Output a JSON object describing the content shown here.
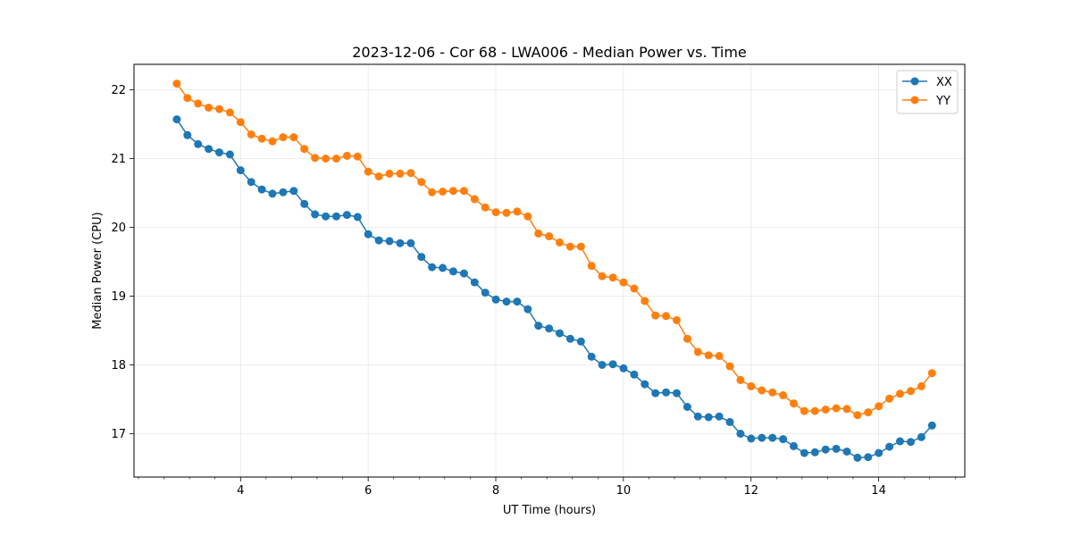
{
  "chart_data": {
    "type": "line",
    "title": "2023-12-06 - Cor 68 - LWA006 - Median Power vs. Time",
    "xlabel": "UT Time (hours)",
    "ylabel": "Median Power (CPU)",
    "xlim": [
      2.33,
      15.35
    ],
    "ylim": [
      16.37,
      22.37
    ],
    "xticks": [
      4,
      6,
      8,
      10,
      12,
      14
    ],
    "xtick_labels": [
      "4",
      "6",
      "8",
      "10",
      "12",
      "14"
    ],
    "x_minor_step": 0.4,
    "yticks": [
      17,
      18,
      19,
      20,
      21,
      22
    ],
    "ytick_labels": [
      "17",
      "18",
      "19",
      "20",
      "21",
      "22"
    ],
    "grid": true,
    "legend_position": "top-right",
    "series_colors": [
      "#1f77b4",
      "#ff7f0e"
    ],
    "x_start": 3.0,
    "x_step": 0.1667,
    "series": [
      {
        "name": "XX",
        "values": [
          21.57,
          21.34,
          21.21,
          21.14,
          21.09,
          21.06,
          20.83,
          20.66,
          20.55,
          20.49,
          20.51,
          20.53,
          20.34,
          20.19,
          20.16,
          20.16,
          20.18,
          20.15,
          19.9,
          19.81,
          19.8,
          19.77,
          19.77,
          19.57,
          19.42,
          19.41,
          19.36,
          19.33,
          19.2,
          19.05,
          18.95,
          18.92,
          18.92,
          18.81,
          18.57,
          18.53,
          18.46,
          18.38,
          18.34,
          18.12,
          18.0,
          18.01,
          17.95,
          17.86,
          17.72,
          17.59,
          17.6,
          17.59,
          17.39,
          17.25,
          17.24,
          17.25,
          17.17,
          17.0,
          16.93,
          16.94,
          16.94,
          16.92,
          16.82,
          16.72,
          16.73,
          16.77,
          16.78,
          16.74,
          16.65,
          16.66,
          16.72,
          16.81,
          16.89,
          16.88,
          16.95,
          17.12
        ]
      },
      {
        "name": "YY",
        "values": [
          22.09,
          21.88,
          21.8,
          21.74,
          21.72,
          21.67,
          21.53,
          21.35,
          21.29,
          21.25,
          21.31,
          21.31,
          21.14,
          21.01,
          21.0,
          21.0,
          21.04,
          21.03,
          20.81,
          20.74,
          20.78,
          20.78,
          20.79,
          20.66,
          20.51,
          20.52,
          20.53,
          20.53,
          20.41,
          20.29,
          20.22,
          20.21,
          20.23,
          20.16,
          19.91,
          19.87,
          19.78,
          19.72,
          19.72,
          19.44,
          19.29,
          19.27,
          19.2,
          19.11,
          18.93,
          18.72,
          18.71,
          18.65,
          18.38,
          18.19,
          18.14,
          18.13,
          17.98,
          17.78,
          17.69,
          17.63,
          17.6,
          17.56,
          17.44,
          17.33,
          17.33,
          17.35,
          17.37,
          17.36,
          17.27,
          17.31,
          17.4,
          17.51,
          17.58,
          17.62,
          17.69,
          17.88
        ]
      }
    ]
  }
}
